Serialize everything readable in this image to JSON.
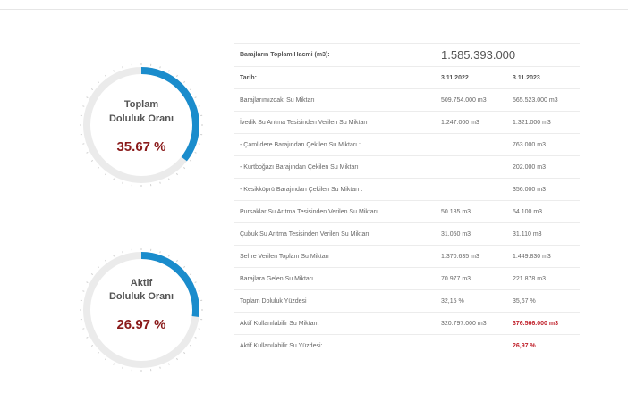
{
  "gauges": [
    {
      "label_line1": "Toplam",
      "label_line2": "Doluluk Oranı",
      "value_text": "35.67 %",
      "fill_fraction": 0.3567
    },
    {
      "label_line1": "Aktif",
      "label_line2": "Doluluk Oranı",
      "value_text": "26.97 %",
      "fill_fraction": 0.2697
    }
  ],
  "colors": {
    "arc_fill": "#1a8ccc",
    "arc_track": "#ebebeb",
    "value_red": "#8a1a1a",
    "highlight_red": "#c0202a"
  },
  "table": {
    "total_label": "Barajların Toplam Hacmi (m3):",
    "total_value": "1.585.393.000",
    "header": {
      "label": "Tarih:",
      "col1": "3.11.2022",
      "col2": "3.11.2023"
    },
    "rows": [
      {
        "label": "Barajlarımızdaki Su Miktarı",
        "col1": "509.754.000 m3",
        "col2": "565.523.000 m3"
      },
      {
        "label": "İvedik Su Arıtma Tesisinden Verilen Su Miktarı",
        "col1": "1.247.000 m3",
        "col2": "1.321.000 m3"
      },
      {
        "label": "- Çamlıdere Barajından Çekilen Su Miktarı :",
        "col1": "",
        "col2": "763.000 m3"
      },
      {
        "label": "- Kurtboğazı Barajından Çekilen Su Miktarı :",
        "col1": "",
        "col2": "202.000 m3"
      },
      {
        "label": "- Kesikköprü Barajından Çekilen Su Miktarı :",
        "col1": "",
        "col2": "356.000 m3"
      },
      {
        "label": "Pursaklar Su Arıtma Tesisinden Verilen Su Miktarı",
        "col1": "50.185 m3",
        "col2": "54.100 m3"
      },
      {
        "label": "Çubuk Su Arıtma Tesisinden Verilen Su Miktarı",
        "col1": "31.050 m3",
        "col2": "31.110 m3"
      },
      {
        "label": "Şehre Verilen Toplam Su Miktarı",
        "col1": "1.370.635 m3",
        "col2": "1.449.830 m3"
      },
      {
        "label": "Barajlara Gelen Su Miktarı",
        "col1": "70.977 m3",
        "col2": "221.878 m3"
      },
      {
        "label": "Toplam Doluluk Yüzdesi",
        "col1": "32,15 %",
        "col2": "35,67 %"
      },
      {
        "label": "Aktif Kullanılabilir Su Miktarı:",
        "col1": "320.797.000 m3",
        "col2": "376.566.000 m3"
      },
      {
        "label": "Aktif Kullanılabilir Su Yüzdesi:",
        "col1": "",
        "col2": "26,97 %"
      }
    ]
  }
}
